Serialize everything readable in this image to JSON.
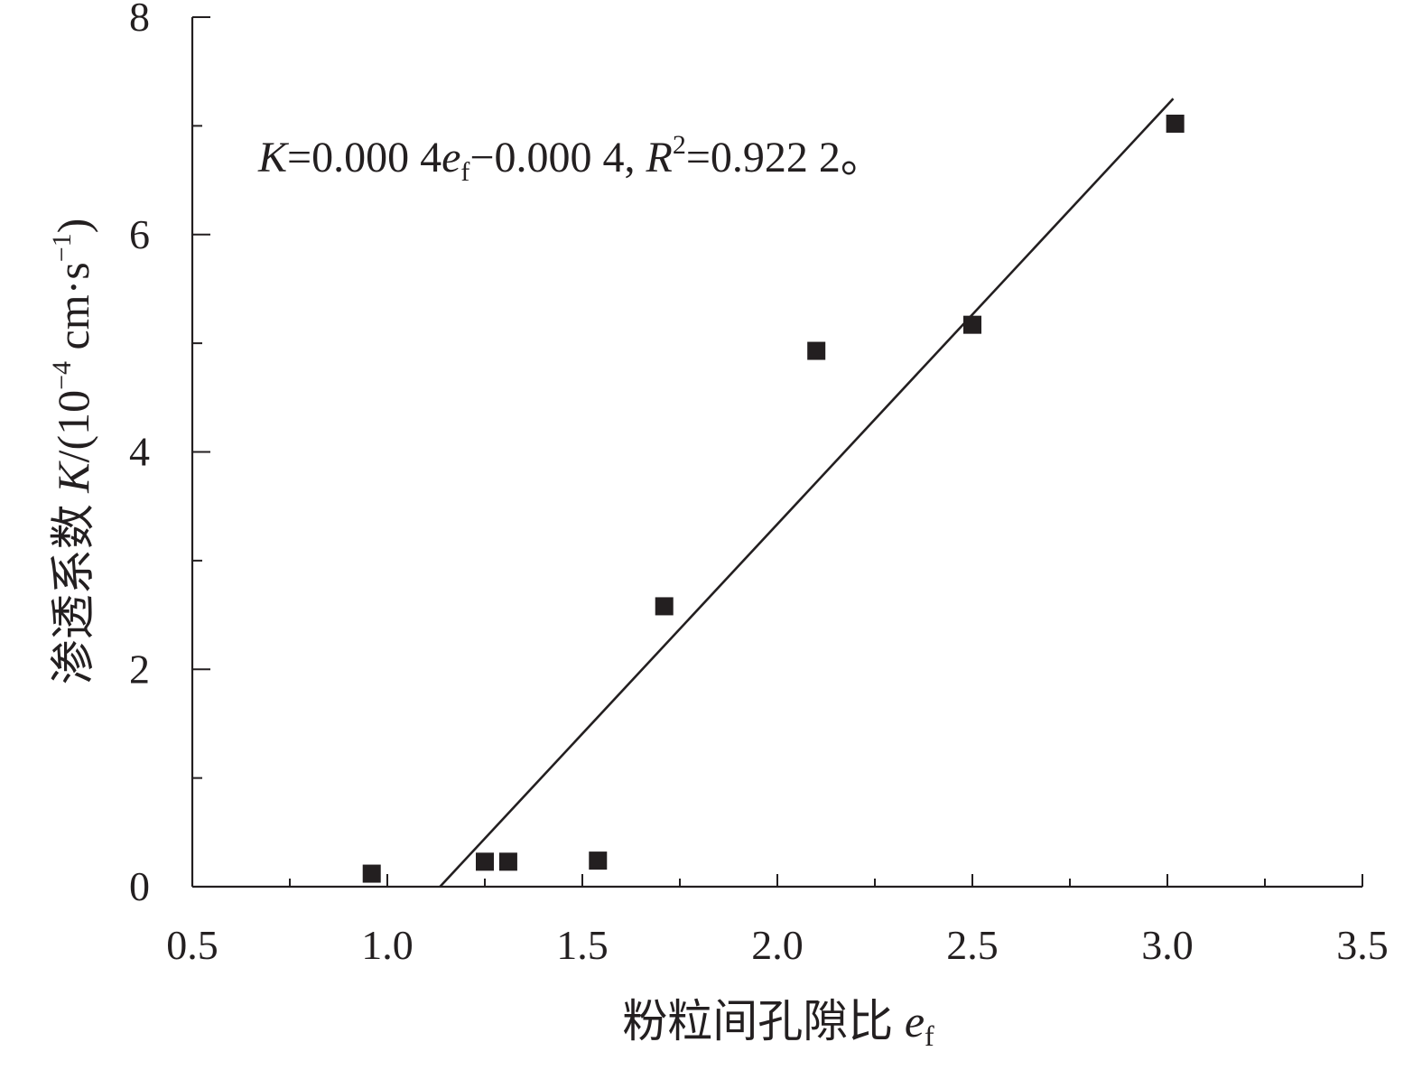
{
  "chart_data": {
    "type": "scatter",
    "xlabel": {
      "text": "粉粒间孔隙比 ",
      "var": "e",
      "var_sub": "f"
    },
    "ylabel": {
      "text": "渗透系数 ",
      "var": "K",
      "mid": "/(10",
      "exp": "−4",
      "unit": " cm·s",
      "unit_exp": "−1",
      "close": ")"
    },
    "xlim": [
      0.5,
      3.5
    ],
    "ylim": [
      0,
      8
    ],
    "xticks": [
      "0.5",
      "1.0",
      "1.5",
      "2.0",
      "2.5",
      "3.0",
      "3.5"
    ],
    "yticks": [
      "0",
      "2",
      "4",
      "6",
      "8"
    ],
    "points": [
      {
        "x": 0.96,
        "y": 0.12
      },
      {
        "x": 1.25,
        "y": 0.23
      },
      {
        "x": 1.31,
        "y": 0.23
      },
      {
        "x": 1.54,
        "y": 0.24
      },
      {
        "x": 1.71,
        "y": 2.58
      },
      {
        "x": 2.1,
        "y": 4.93
      },
      {
        "x": 2.5,
        "y": 5.17
      },
      {
        "x": 3.02,
        "y": 7.02
      }
    ],
    "fit_line": {
      "x_start": 1.135,
      "y_start": 0.0,
      "x_end": 3.015,
      "y_end": 7.25
    },
    "equation": {
      "k": "K",
      "p1": "=0.000 4",
      "e": "e",
      "e_sub": "f",
      "p2": "−0.000 4, ",
      "r": "R",
      "r_sup": "2",
      "p3": "=0.922 2。"
    },
    "marker_color": "#231f20",
    "grid": false,
    "legend": "none"
  }
}
